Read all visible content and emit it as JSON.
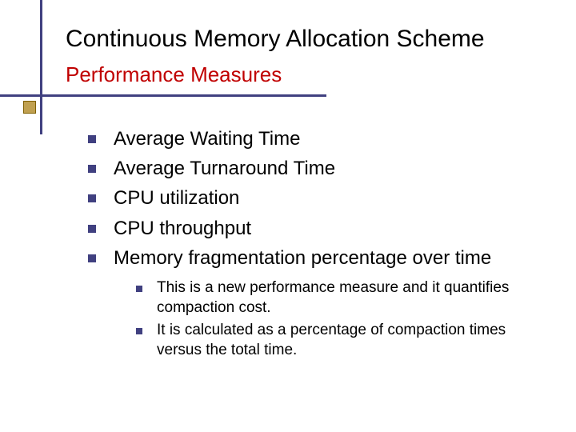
{
  "colors": {
    "title_color": "#000000",
    "subtitle_color": "#c00000",
    "rule_color": "#404080",
    "accent_box_fill": "#c0a050",
    "accent_box_border": "#806000",
    "bullet_color": "#404080",
    "body_text_color": "#000000",
    "background": "#ffffff"
  },
  "typography": {
    "title_fontsize": 30,
    "subtitle_fontsize": 26,
    "lvl1_fontsize": 24,
    "lvl2_fontsize": 19,
    "font_family": "Verdana"
  },
  "title": "Continuous Memory Allocation Scheme",
  "subtitle": "Performance Measures",
  "bullets": {
    "lvl1": [
      "Average Waiting Time",
      "Average Turnaround Time",
      "CPU utilization",
      "CPU throughput",
      "Memory fragmentation percentage over time"
    ],
    "lvl2": [
      "This is a new performance measure and it quantifies compaction cost.",
      "It is calculated as a percentage of compaction times versus the total time."
    ]
  }
}
